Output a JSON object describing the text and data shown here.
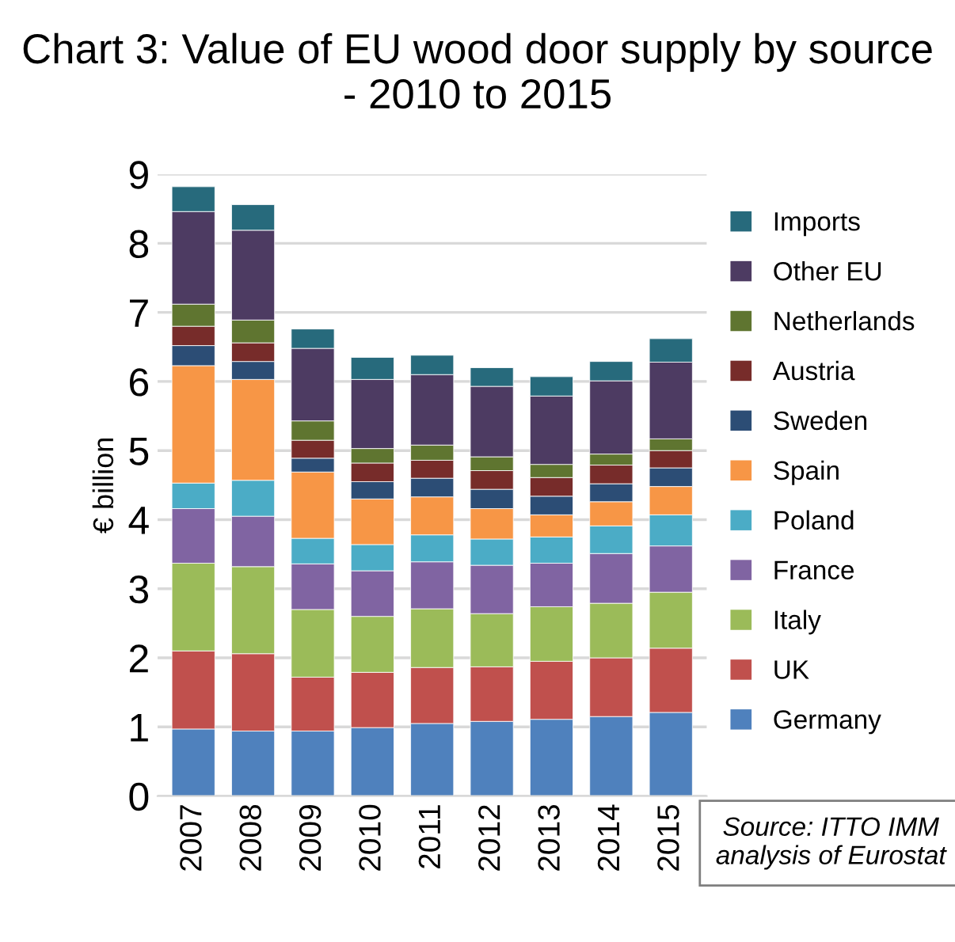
{
  "chart_data": {
    "type": "bar",
    "stacked": true,
    "title": "Chart 3: Value of EU wood door supply by source - 2010 to 2015",
    "ylabel": "€ billion",
    "categories": [
      "2007",
      "2008",
      "2009",
      "2010",
      "2011",
      "2012",
      "2013",
      "2014",
      "2015"
    ],
    "series": [
      {
        "name": "Germany",
        "color": "#4f81bd",
        "values": [
          0.97,
          0.94,
          0.94,
          0.99,
          1.05,
          1.08,
          1.11,
          1.15,
          1.21
        ]
      },
      {
        "name": "UK",
        "color": "#c0504d",
        "values": [
          1.13,
          1.12,
          0.78,
          0.8,
          0.81,
          0.79,
          0.84,
          0.85,
          0.93
        ]
      },
      {
        "name": "Italy",
        "color": "#9bbb59",
        "values": [
          1.27,
          1.26,
          0.98,
          0.81,
          0.85,
          0.77,
          0.79,
          0.79,
          0.81
        ]
      },
      {
        "name": "France",
        "color": "#8064a2",
        "values": [
          0.79,
          0.73,
          0.66,
          0.66,
          0.68,
          0.7,
          0.63,
          0.72,
          0.67
        ]
      },
      {
        "name": "Poland",
        "color": "#4bacc6",
        "values": [
          0.37,
          0.52,
          0.37,
          0.38,
          0.39,
          0.38,
          0.38,
          0.4,
          0.45
        ]
      },
      {
        "name": "Spain",
        "color": "#f79646",
        "values": [
          1.7,
          1.46,
          0.96,
          0.66,
          0.55,
          0.44,
          0.32,
          0.35,
          0.41
        ]
      },
      {
        "name": "Sweden",
        "color": "#2c4d75",
        "values": [
          0.29,
          0.26,
          0.2,
          0.25,
          0.27,
          0.28,
          0.27,
          0.26,
          0.27
        ]
      },
      {
        "name": "Austria",
        "color": "#772c2a",
        "values": [
          0.28,
          0.27,
          0.26,
          0.27,
          0.26,
          0.27,
          0.27,
          0.27,
          0.25
        ]
      },
      {
        "name": "Netherlands",
        "color": "#5f7530",
        "values": [
          0.32,
          0.33,
          0.28,
          0.21,
          0.22,
          0.2,
          0.19,
          0.16,
          0.17
        ]
      },
      {
        "name": "Other EU",
        "color": "#4d3b62",
        "values": [
          1.34,
          1.3,
          1.05,
          1.0,
          1.02,
          1.02,
          0.99,
          1.06,
          1.11
        ]
      },
      {
        "name": "Imports",
        "color": "#276a7c",
        "values": [
          0.36,
          0.37,
          0.28,
          0.32,
          0.28,
          0.27,
          0.28,
          0.28,
          0.34
        ]
      }
    ],
    "ylim": [
      0,
      9
    ],
    "yticks": [
      0,
      1,
      2,
      3,
      4,
      5,
      6,
      7,
      8,
      9
    ],
    "grid": "y",
    "legend": "right",
    "annotations": [
      "Source: ITTO IMM analysis of Eurostat"
    ]
  }
}
